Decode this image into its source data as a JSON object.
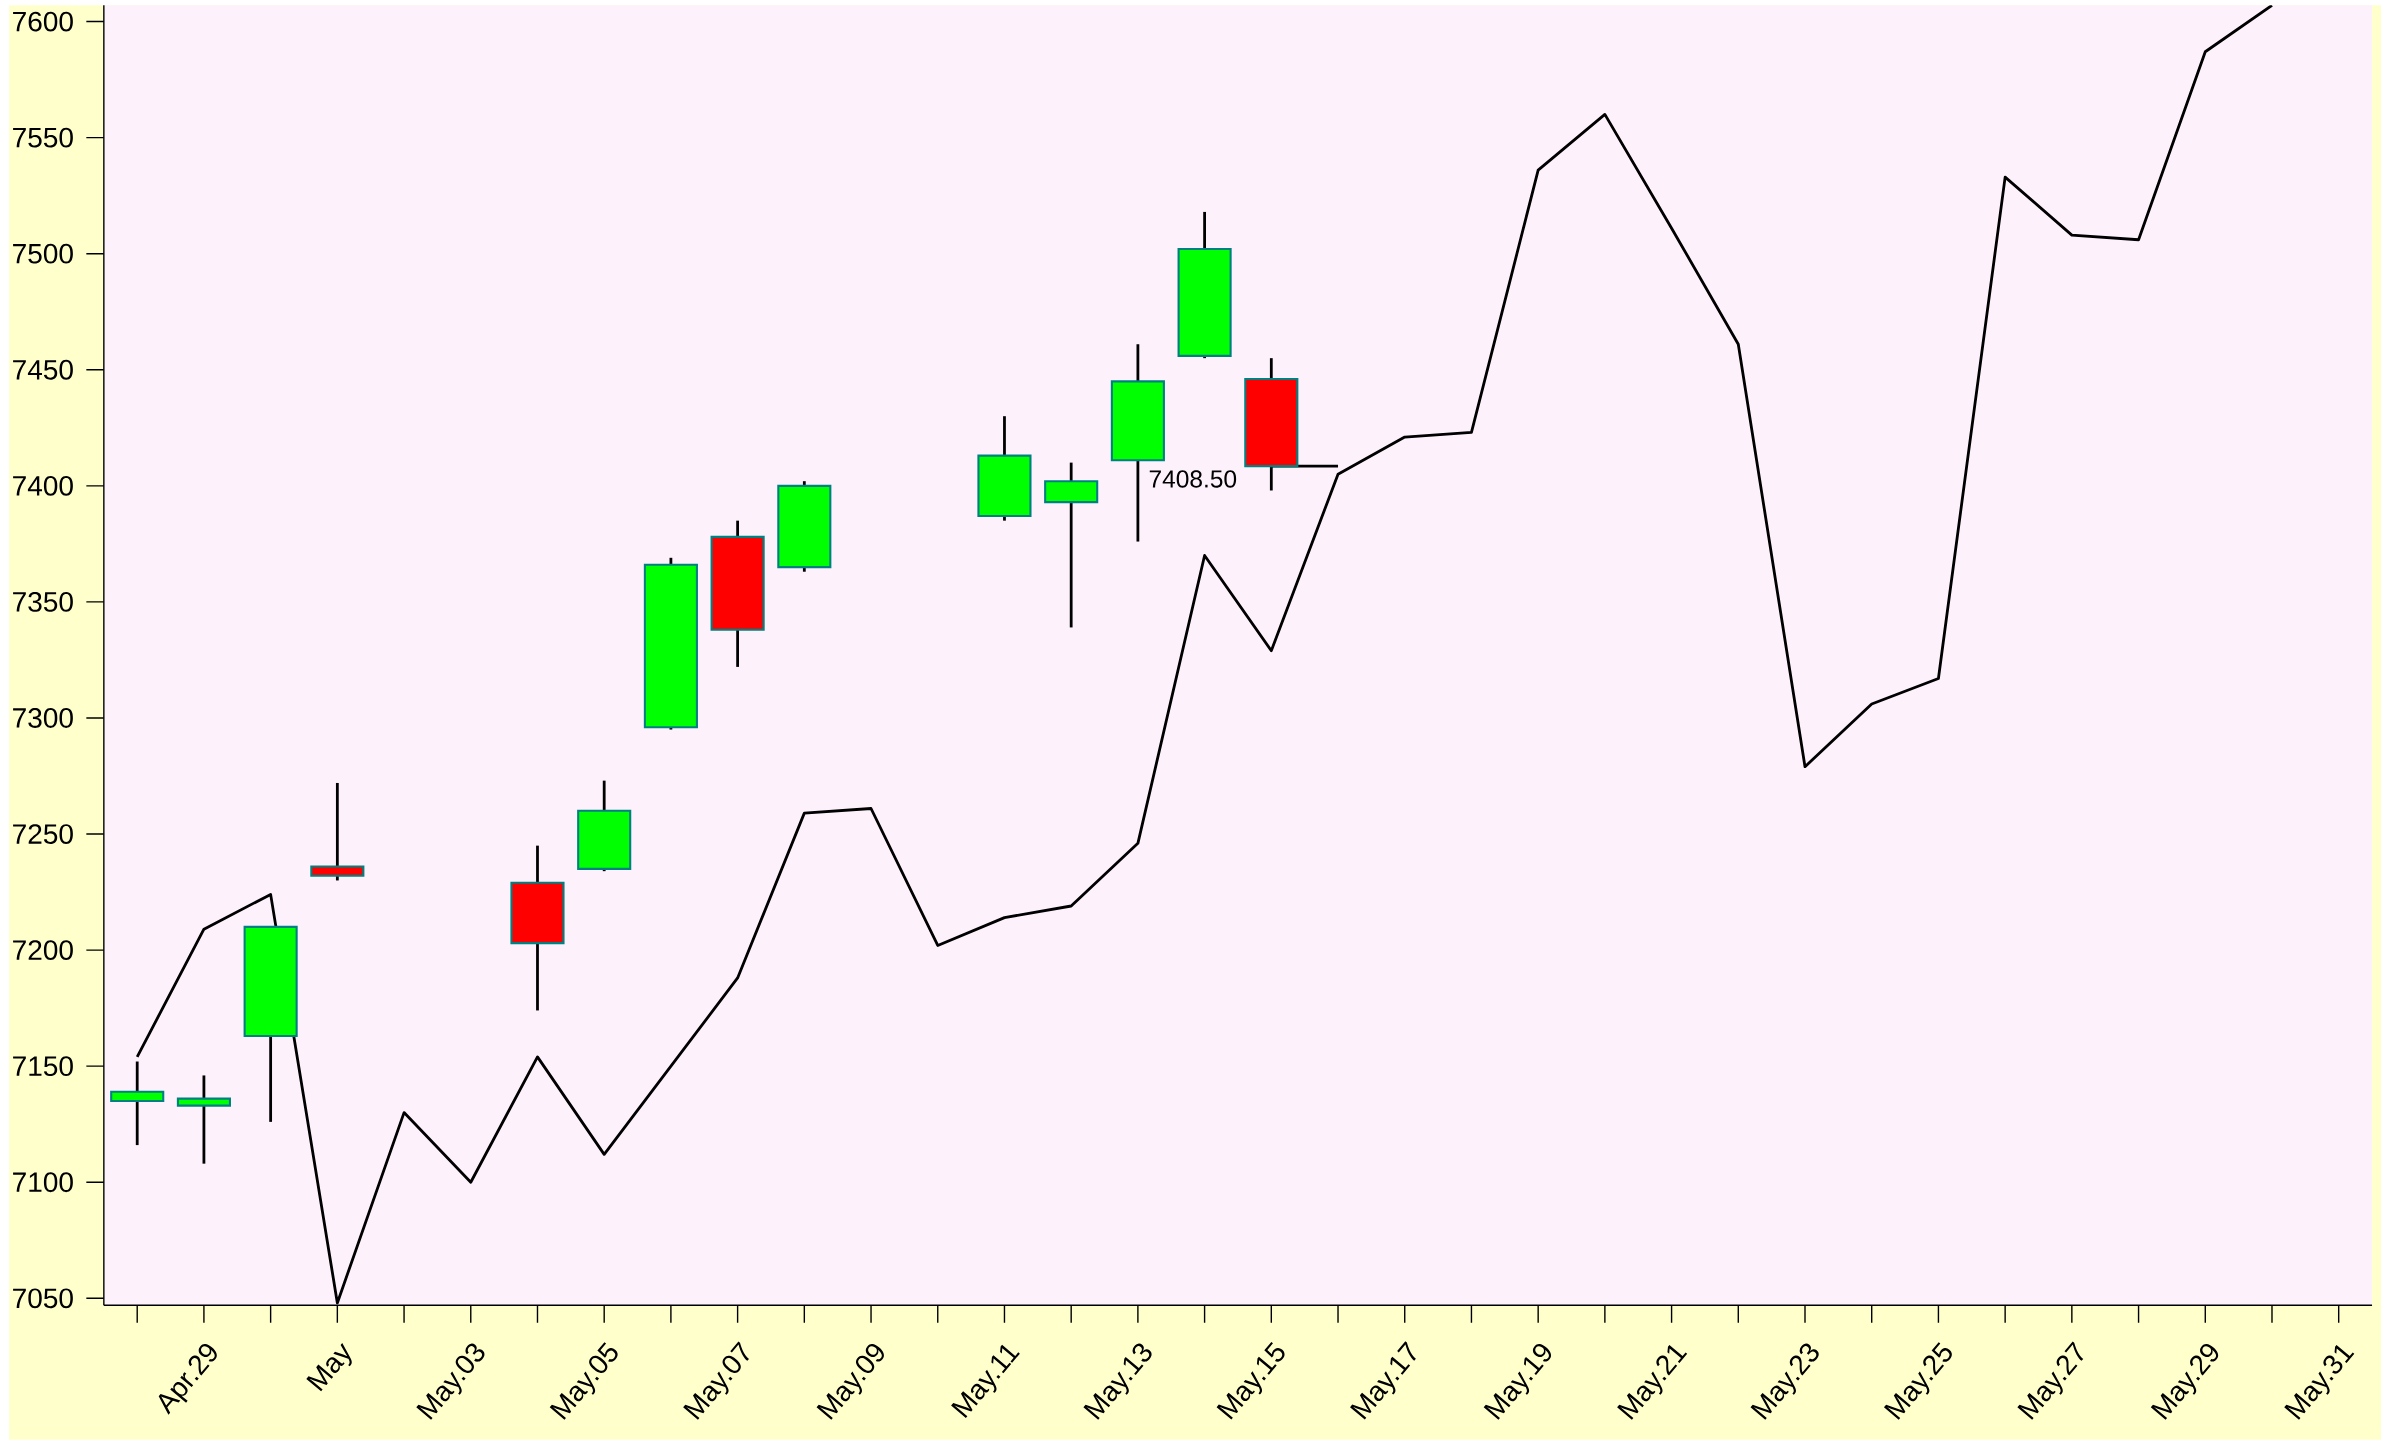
{
  "chart_data": {
    "type": "candlestick",
    "categories": [
      null,
      "Apr.29",
      null,
      "May",
      null,
      "May.03",
      null,
      "May.05",
      null,
      "May.07",
      null,
      "May.09",
      null,
      "May.11",
      null,
      "May.13",
      null,
      "May.15",
      null,
      "May.17",
      null,
      "May.19",
      null,
      "May.21",
      null,
      "May.23",
      null,
      "May.25",
      null,
      "May.27",
      null,
      "May.29",
      null,
      "May.31"
    ],
    "ylim": [
      7047,
      7607
    ],
    "yticks": [
      7050,
      7100,
      7150,
      7200,
      7250,
      7300,
      7350,
      7400,
      7450,
      7500,
      7550,
      7600
    ],
    "series": [
      {
        "type": "line",
        "color": "#000000",
        "values": [
          null,
          null,
          null,
          null,
          null,
          null,
          null,
          null,
          null,
          null,
          null,
          null,
          null,
          null,
          null,
          null,
          null,
          7408.5,
          7408.5,
          null,
          null,
          null,
          null,
          null,
          null,
          null,
          null,
          null,
          null,
          null,
          null,
          null,
          null,
          null
        ]
      },
      {
        "type": "line",
        "color": "#000000",
        "values": [
          7154,
          7209,
          7224,
          7048,
          7130,
          7100,
          7154,
          7112,
          7150,
          7188,
          7259,
          7261,
          7202,
          7214,
          7219,
          7246,
          7370,
          7329,
          7405,
          7421,
          7423,
          7536,
          7560,
          7511,
          7461,
          7279,
          7306,
          7317,
          7533,
          7508,
          7506,
          7587,
          7607,
          null
        ]
      },
      {
        "ohlc": [
          [
            7135,
            7152,
            7116,
            7139
          ],
          [
            7133,
            7146,
            7108,
            7136
          ],
          [
            7163,
            7210,
            7126,
            7210
          ],
          [
            7236,
            7272,
            7230,
            7232
          ],
          null,
          null,
          [
            7229,
            7245,
            7174,
            7203
          ],
          [
            7235,
            7273,
            7234,
            7260
          ],
          [
            7296,
            7369,
            7295,
            7366
          ],
          [
            7378,
            7385,
            7322,
            7338
          ],
          [
            7365,
            7402,
            7363,
            7400
          ],
          null,
          null,
          [
            7387,
            7430,
            7385,
            7413
          ],
          [
            7393,
            7410,
            7339,
            7402
          ],
          [
            7411,
            7461,
            7376,
            7445
          ],
          [
            7456,
            7518,
            7455,
            7502
          ],
          [
            7446,
            7455,
            7398,
            7408.5
          ],
          null,
          null,
          null,
          null,
          null,
          null,
          null,
          null,
          null,
          null,
          null,
          null,
          null,
          null,
          null,
          null
        ],
        "colors": [
          "#00ff00",
          "#00ff00",
          "#00ff00",
          "#ff0000",
          null,
          null,
          "#ff0000",
          "#00ff00",
          "#00ff00",
          "#ff0000",
          "#00ff00",
          null,
          null,
          "#00ff00",
          "#00ff00",
          "#00ff00",
          "#00ff00",
          "#ff0000",
          null,
          null,
          null,
          null,
          null,
          null,
          null,
          null,
          null,
          null,
          null,
          null,
          null,
          null,
          null,
          null
        ]
      }
    ],
    "annotations": [
      "7408.50"
    ]
  }
}
